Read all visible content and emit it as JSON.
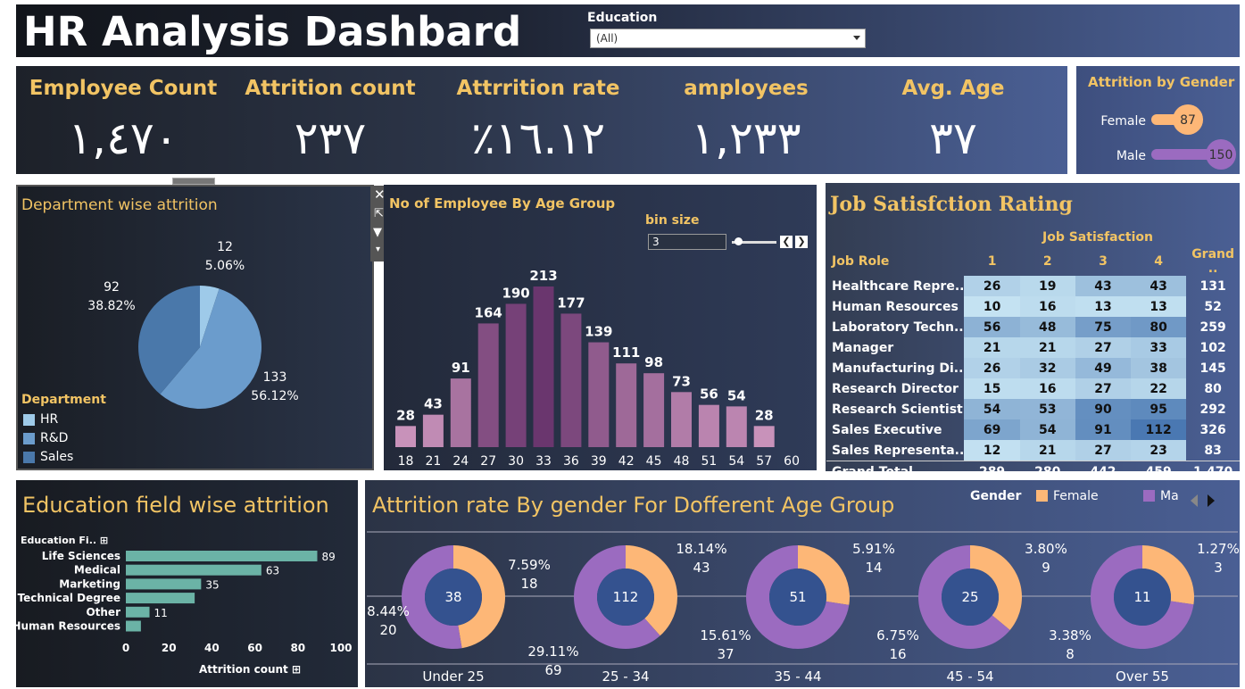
{
  "title": "HR Analysis Dashbard",
  "filter": {
    "label": "Education",
    "value": "(All)"
  },
  "kpis": [
    {
      "label": "Employee Count",
      "value": "١,٤٧٠"
    },
    {
      "label": "Attrition count",
      "value": "٢٣٧"
    },
    {
      "label": "Attrrition rate",
      "value": "٪١٦.١٢"
    },
    {
      "label": "amployees",
      "value": "١,٢٣٣"
    },
    {
      "label": "Avg. Age",
      "value": "٣٧"
    }
  ],
  "gender_panel": {
    "title": "Attrition by Gender",
    "female_label": "Female",
    "male_label": "Male",
    "colors": {
      "female": "#fdb777",
      "male": "#9b6bc0"
    }
  },
  "dept_panel": {
    "title": "Department wise attrition",
    "legend_title": "Department",
    "legend": [
      "HR",
      "R&D",
      "Sales"
    ]
  },
  "age_panel": {
    "title": "No of Employee By Age Group",
    "bin_label": "bin size",
    "bin_value": "3"
  },
  "job_panel": {
    "title": "Job Satisfction Rating",
    "col_group": "Job Satisfaction",
    "role_header": "Job Role",
    "headers": [
      "1",
      "2",
      "3",
      "4",
      "Grand .."
    ],
    "rows": [
      {
        "role": "Healthcare Repre..",
        "v": [
          "26",
          "19",
          "43",
          "43"
        ],
        "t": "131"
      },
      {
        "role": "Human Resources",
        "v": [
          "10",
          "16",
          "13",
          "13"
        ],
        "t": "52"
      },
      {
        "role": "Laboratory Techn..",
        "v": [
          "56",
          "48",
          "75",
          "80"
        ],
        "t": "259"
      },
      {
        "role": "Manager",
        "v": [
          "21",
          "21",
          "27",
          "33"
        ],
        "t": "102"
      },
      {
        "role": "Manufacturing Di..",
        "v": [
          "26",
          "32",
          "49",
          "38"
        ],
        "t": "145"
      },
      {
        "role": "Research Director",
        "v": [
          "15",
          "16",
          "27",
          "22"
        ],
        "t": "80"
      },
      {
        "role": "Research Scientist",
        "v": [
          "54",
          "53",
          "90",
          "95"
        ],
        "t": "292"
      },
      {
        "role": "Sales Executive",
        "v": [
          "69",
          "54",
          "91",
          "112"
        ],
        "t": "326"
      },
      {
        "role": "Sales Representa..",
        "v": [
          "12",
          "21",
          "27",
          "23"
        ],
        "t": "83"
      }
    ],
    "grand_total_label": "Grand Total",
    "grand_total": [
      "289",
      "280",
      "442",
      "459",
      "1,470"
    ]
  },
  "edu_panel": {
    "title": "Education field wise attrition",
    "ylabel": "Education Fi..",
    "xlabel": "Attrition count"
  },
  "gender_age_panel": {
    "title": "Attrition rate  By gender For Dofferent Age Group",
    "legend_title": "Gender",
    "legend_female": "Female",
    "legend_male": "Ma"
  },
  "chart_data": [
    {
      "type": "bar",
      "title": "Attrition by Gender",
      "categories": [
        "Female",
        "Male"
      ],
      "values": [
        87,
        150
      ]
    },
    {
      "type": "pie",
      "title": "Department wise attrition",
      "categories": [
        "HR",
        "R&D",
        "Sales"
      ],
      "values": [
        12,
        133,
        92
      ],
      "labels": [
        "5.06%",
        "56.12%",
        "38.82%"
      ],
      "colors": [
        "#9ecae9",
        "#6b9ccc",
        "#4a78aa"
      ]
    },
    {
      "type": "bar",
      "title": "No of Employee By Age Group",
      "categories": [
        "18",
        "21",
        "24",
        "27",
        "30",
        "33",
        "36",
        "39",
        "42",
        "45",
        "48",
        "51",
        "54",
        "57"
      ],
      "x_ticks": [
        "18",
        "21",
        "24",
        "27",
        "30",
        "33",
        "36",
        "39",
        "42",
        "45",
        "48",
        "51",
        "54",
        "57",
        "60"
      ],
      "values": [
        28,
        43,
        91,
        164,
        190,
        213,
        177,
        139,
        111,
        98,
        73,
        56,
        54,
        28
      ],
      "ylim": [
        0,
        213
      ]
    },
    {
      "type": "bar",
      "title": "Education field wise attrition",
      "categories": [
        "Life Sciences",
        "Medical",
        "Marketing",
        "Technical Degree",
        "Other",
        "Human Resources"
      ],
      "values": [
        89,
        63,
        35,
        32,
        11,
        7
      ],
      "value_labels": [
        "89",
        "63",
        "35",
        "",
        "11",
        ""
      ],
      "xlim": [
        0,
        100
      ],
      "x_ticks": [
        "0",
        "20",
        "40",
        "60",
        "80",
        "100"
      ],
      "xlabel": "Attrition count",
      "ylabel": "Education Fi.."
    },
    {
      "type": "pie",
      "title": "Attrition rate  By gender For Dofferent Age Group",
      "categories": [
        "Under 25",
        "25 - 34",
        "35 - 44",
        "45 - 54",
        "Over 55"
      ],
      "totals": [
        "38",
        "112",
        "51",
        "25",
        "11"
      ],
      "series": [
        {
          "name": "Female",
          "values": [
            18,
            43,
            14,
            9,
            3
          ],
          "pct": [
            "7.59%",
            "18.14%",
            "5.91%",
            "3.80%",
            "1.27%"
          ]
        },
        {
          "name": "Ma",
          "values": [
            20,
            69,
            37,
            16,
            8
          ],
          "pct": [
            "8.44%",
            "29.11%",
            "15.61%",
            "6.75%",
            "3.38%"
          ]
        }
      ]
    }
  ]
}
